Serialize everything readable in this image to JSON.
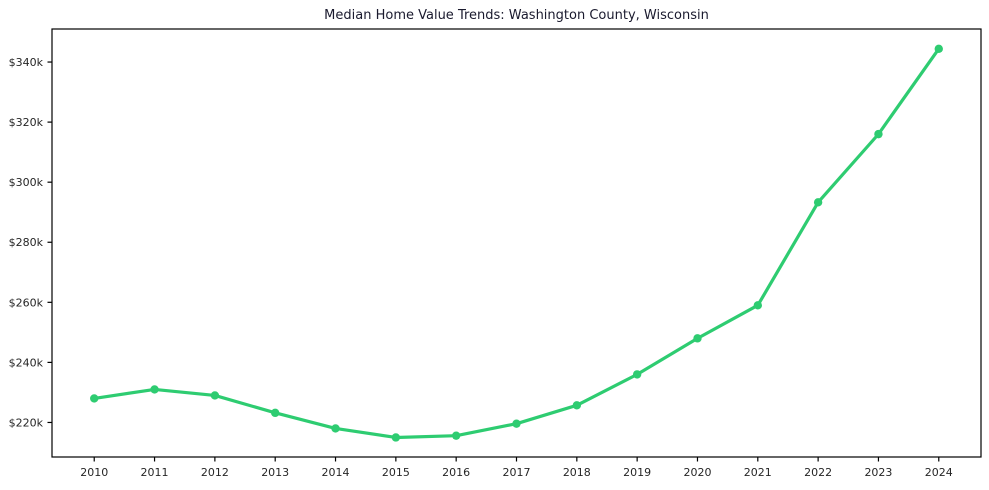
{
  "page": {
    "background": "#ffffff"
  },
  "chart_data": {
    "type": "line",
    "title": "Median Home Value Trends: Washington County, Wisconsin",
    "x": [
      2010,
      2011,
      2012,
      2013,
      2014,
      2015,
      2016,
      2017,
      2018,
      2019,
      2020,
      2021,
      2022,
      2023,
      2024
    ],
    "series": [
      {
        "name": "Median Home Value",
        "color": "#2ecc71",
        "values": [
          228000,
          231000,
          229000,
          223200,
          218000,
          215000,
          215600,
          219600,
          225700,
          236000,
          248000,
          259000,
          293300,
          316000,
          344400
        ]
      }
    ],
    "xlabel": "",
    "ylabel": "",
    "xlim": [
      2009.3,
      2024.7
    ],
    "ylim": [
      208500,
      351000
    ],
    "x_ticks": [
      {
        "value": 2010,
        "label": "2010"
      },
      {
        "value": 2011,
        "label": "2011"
      },
      {
        "value": 2012,
        "label": "2012"
      },
      {
        "value": 2013,
        "label": "2013"
      },
      {
        "value": 2014,
        "label": "2014"
      },
      {
        "value": 2015,
        "label": "2015"
      },
      {
        "value": 2016,
        "label": "2016"
      },
      {
        "value": 2017,
        "label": "2017"
      },
      {
        "value": 2018,
        "label": "2018"
      },
      {
        "value": 2019,
        "label": "2019"
      },
      {
        "value": 2020,
        "label": "2020"
      },
      {
        "value": 2021,
        "label": "2021"
      },
      {
        "value": 2022,
        "label": "2022"
      },
      {
        "value": 2023,
        "label": "2023"
      },
      {
        "value": 2024,
        "label": "2024"
      }
    ],
    "y_ticks": [
      {
        "value": 220000,
        "label": "$220k"
      },
      {
        "value": 240000,
        "label": "$240k"
      },
      {
        "value": 260000,
        "label": "$260k"
      },
      {
        "value": 280000,
        "label": "$280k"
      },
      {
        "value": 300000,
        "label": "$300k"
      },
      {
        "value": 320000,
        "label": "$320k"
      },
      {
        "value": 340000,
        "label": "$340k"
      }
    ],
    "grid": false,
    "legend": "none",
    "marker": "circle"
  },
  "style": {
    "line_color": "#2ecc71",
    "marker_color": "#2ecc71",
    "axis_color": "#000000",
    "tick_label_color": "#262626",
    "title_color": "#1a1a2e"
  }
}
